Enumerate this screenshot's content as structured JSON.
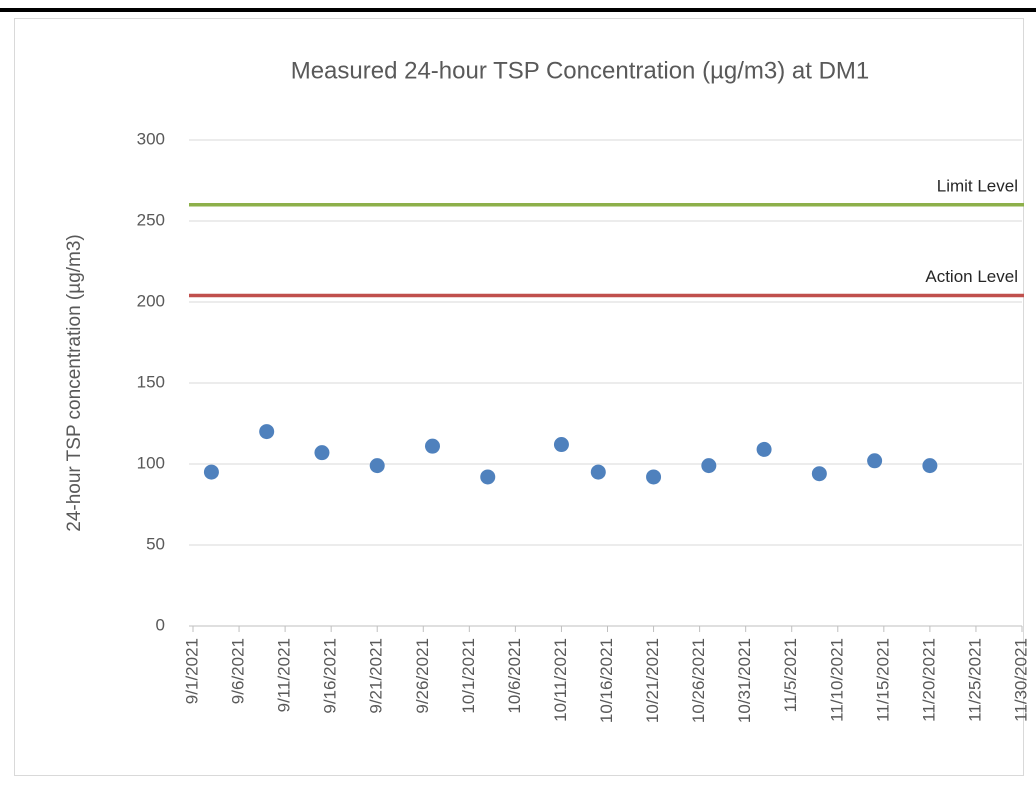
{
  "chart_data": {
    "type": "scatter",
    "title": "Measured 24-hour TSP Concentration (µg/m3) at DM1",
    "y_label": "24-hour TSP concentration (µg/m3)",
    "series": [
      {
        "color": "#4f81bd",
        "x": [
          "2021-09-03",
          "2021-09-09",
          "2021-09-15",
          "2021-09-21",
          "2021-09-27",
          "2021-10-03",
          "2021-10-11",
          "2021-10-15",
          "2021-10-21",
          "2021-10-27",
          "2021-11-02",
          "2021-11-08",
          "2021-11-14",
          "2021-11-20"
        ],
        "values": [
          95,
          120,
          107,
          99,
          111,
          92,
          112,
          95,
          92,
          99,
          109,
          94,
          102,
          99
        ]
      }
    ],
    "reference_lines": [
      {
        "label": "Limit Level",
        "value": 260,
        "color": "#8db04a"
      },
      {
        "label": "Action Level",
        "value": 204,
        "color": "#c0504d"
      }
    ],
    "xlim": [
      "2021-09-01",
      "2021-11-30"
    ],
    "xticks": [
      {
        "value": "2021-09-01",
        "label": "9/1/2021"
      },
      {
        "value": "2021-09-06",
        "label": "9/6/2021"
      },
      {
        "value": "2021-09-11",
        "label": "9/11/2021"
      },
      {
        "value": "2021-09-16",
        "label": "9/16/2021"
      },
      {
        "value": "2021-09-21",
        "label": "9/21/2021"
      },
      {
        "value": "2021-09-26",
        "label": "9/26/2021"
      },
      {
        "value": "2021-10-01",
        "label": "10/1/2021"
      },
      {
        "value": "2021-10-06",
        "label": "10/6/2021"
      },
      {
        "value": "2021-10-11",
        "label": "10/11/2021"
      },
      {
        "value": "2021-10-16",
        "label": "10/16/2021"
      },
      {
        "value": "2021-10-21",
        "label": "10/21/2021"
      },
      {
        "value": "2021-10-26",
        "label": "10/26/2021"
      },
      {
        "value": "2021-10-31",
        "label": "10/31/2021"
      },
      {
        "value": "2021-11-05",
        "label": "11/5/2021"
      },
      {
        "value": "2021-11-10",
        "label": "11/10/2021"
      },
      {
        "value": "2021-11-15",
        "label": "11/15/2021"
      },
      {
        "value": "2021-11-20",
        "label": "11/20/2021"
      },
      {
        "value": "2021-11-25",
        "label": "11/25/2021"
      },
      {
        "value": "2021-11-30",
        "label": "11/30/2021"
      }
    ],
    "ylim": [
      0,
      300
    ],
    "yticks": [
      0,
      50,
      100,
      150,
      200,
      250,
      300
    ],
    "grid": true
  }
}
